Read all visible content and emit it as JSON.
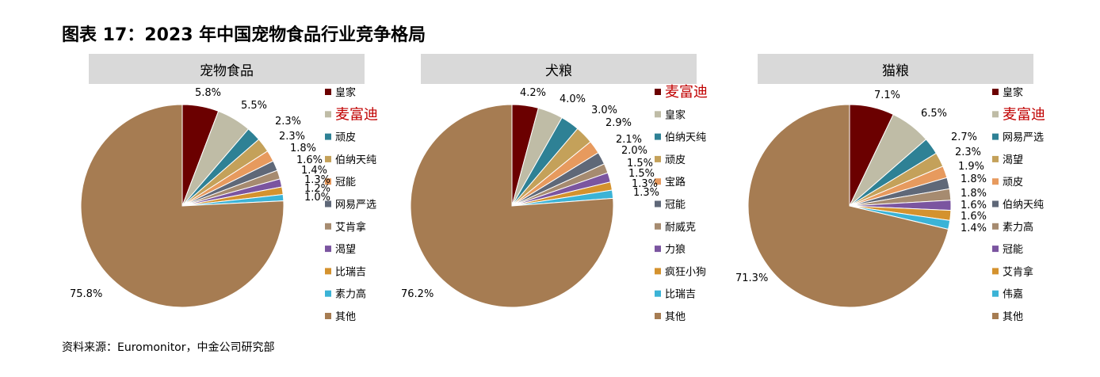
{
  "figure": {
    "title": "图表 17：2023 年中国宠物食品行业竞争格局",
    "source": "资料来源：Euromonitor，中金公司研究部"
  },
  "highlight_color": "#c00000",
  "chart_data": [
    {
      "type": "pie",
      "title": "宠物食品",
      "legend_position": "right",
      "highlight": "麦富迪",
      "slices": [
        {
          "label": "皇家",
          "value": 5.8,
          "display": "5.8%",
          "color": "#6b0000"
        },
        {
          "label": "麦富迪",
          "value": 5.5,
          "display": "5.5%",
          "color": "#bfbca6"
        },
        {
          "label": "顽皮",
          "value": 2.3,
          "display": "2.3%",
          "color": "#2e8195"
        },
        {
          "label": "伯纳天纯",
          "value": 2.3,
          "display": "2.3%",
          "color": "#c4a15a"
        },
        {
          "label": "冠能",
          "value": 1.8,
          "display": "1.8%",
          "color": "#e79a5e"
        },
        {
          "label": "网易严选",
          "value": 1.6,
          "display": "1.6%",
          "color": "#5f6878"
        },
        {
          "label": "艾肯拿",
          "value": 1.4,
          "display": "1.4%",
          "color": "#a68b70"
        },
        {
          "label": "渴望",
          "value": 1.3,
          "display": "1.3%",
          "color": "#7b55a0"
        },
        {
          "label": "比瑞吉",
          "value": 1.2,
          "display": "1.2%",
          "color": "#d4922e"
        },
        {
          "label": "素力高",
          "value": 1.0,
          "display": "1.0%",
          "color": "#3bb3d6"
        },
        {
          "label": "其他",
          "value": 75.8,
          "display": "75.8%",
          "color": "#a67c52"
        }
      ]
    },
    {
      "type": "pie",
      "title": "犬粮",
      "legend_position": "right",
      "highlight": "麦富迪",
      "slices": [
        {
          "label": "麦富迪",
          "value": 4.2,
          "display": "4.2%",
          "color": "#6b0000"
        },
        {
          "label": "皇家",
          "value": 4.0,
          "display": "4.0%",
          "color": "#bfbca6"
        },
        {
          "label": "伯纳天纯",
          "value": 3.0,
          "display": "3.0%",
          "color": "#2e8195"
        },
        {
          "label": "顽皮",
          "value": 2.9,
          "display": "2.9%",
          "color": "#c4a15a"
        },
        {
          "label": "宝路",
          "value": 2.1,
          "display": "2.1%",
          "color": "#e79a5e"
        },
        {
          "label": "冠能",
          "value": 2.0,
          "display": "2.0%",
          "color": "#5f6878"
        },
        {
          "label": "耐威克",
          "value": 1.5,
          "display": "1.5%",
          "color": "#a68b70"
        },
        {
          "label": "力狼",
          "value": 1.5,
          "display": "1.5%",
          "color": "#7b55a0"
        },
        {
          "label": "疯狂小狗",
          "value": 1.3,
          "display": "1.3%",
          "color": "#d4922e"
        },
        {
          "label": "比瑞吉",
          "value": 1.3,
          "display": "1.3%",
          "color": "#3bb3d6"
        },
        {
          "label": "其他",
          "value": 76.2,
          "display": "76.2%",
          "color": "#a67c52"
        }
      ]
    },
    {
      "type": "pie",
      "title": "猫粮",
      "legend_position": "right",
      "highlight": "麦富迪",
      "slices": [
        {
          "label": "皇家",
          "value": 7.1,
          "display": "7.1%",
          "color": "#6b0000"
        },
        {
          "label": "麦富迪",
          "value": 6.5,
          "display": "6.5%",
          "color": "#bfbca6"
        },
        {
          "label": "网易严选",
          "value": 2.7,
          "display": "2.7%",
          "color": "#2e8195"
        },
        {
          "label": "渴望",
          "value": 2.3,
          "display": "2.3%",
          "color": "#c4a15a"
        },
        {
          "label": "顽皮",
          "value": 1.9,
          "display": "1.9%",
          "color": "#e79a5e"
        },
        {
          "label": "伯纳天纯",
          "value": 1.8,
          "display": "1.8%",
          "color": "#5f6878"
        },
        {
          "label": "素力高",
          "value": 1.8,
          "display": "1.8%",
          "color": "#a68b70"
        },
        {
          "label": "冠能",
          "value": 1.6,
          "display": "1.6%",
          "color": "#7b55a0"
        },
        {
          "label": "艾肯拿",
          "value": 1.6,
          "display": "1.6%",
          "color": "#d4922e"
        },
        {
          "label": "伟嘉",
          "value": 1.4,
          "display": "1.4%",
          "color": "#3bb3d6"
        },
        {
          "label": "其他",
          "value": 71.3,
          "display": "71.3%",
          "color": "#a67c52"
        }
      ]
    }
  ]
}
